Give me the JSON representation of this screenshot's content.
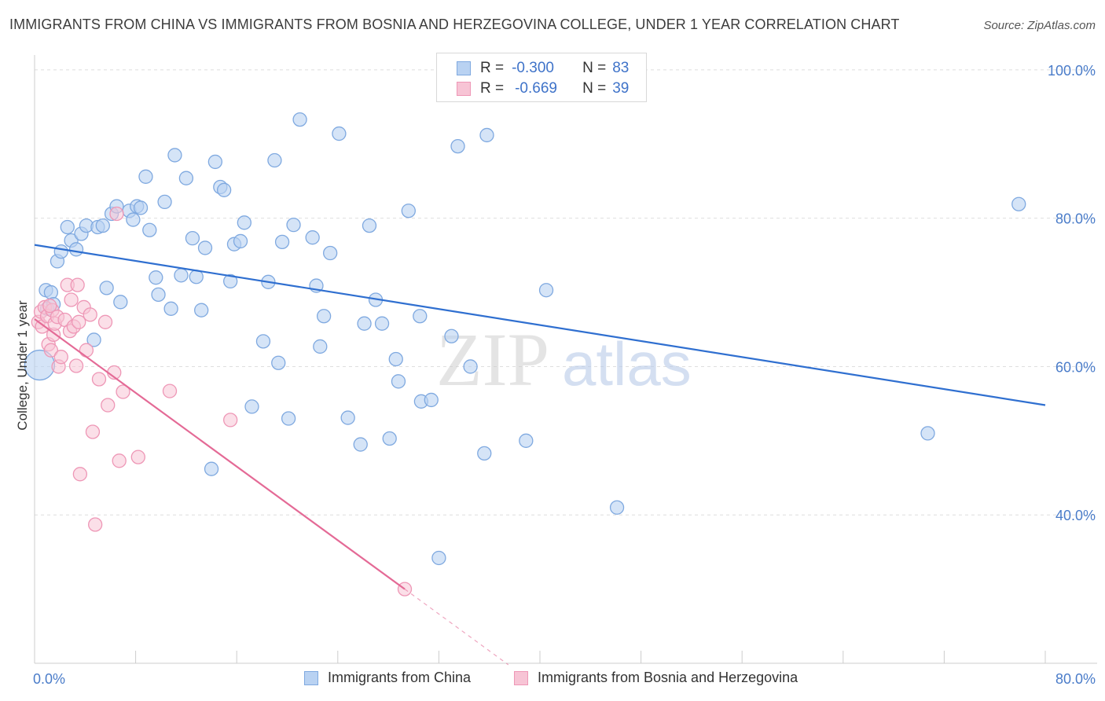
{
  "title": "IMMIGRANTS FROM CHINA VS IMMIGRANTS FROM BOSNIA AND HERZEGOVINA COLLEGE, UNDER 1 YEAR CORRELATION CHART",
  "source": "Source: ZipAtlas.com",
  "watermark": {
    "zip": "ZIP",
    "atlas": "atlas"
  },
  "colors": {
    "china_fill": "#b9d2f2",
    "china_stroke": "#7fa9e0",
    "china_line": "#2f6fd0",
    "bosnia_fill": "#f7c4d5",
    "bosnia_stroke": "#ee97b6",
    "bosnia_line": "#e46a96",
    "axis_label": "#4a7cc9",
    "grid": "#dedede"
  },
  "stats_legend": [
    {
      "r_label": "R =",
      "r_value": "-0.300",
      "n_label": "N =",
      "n_value": "83"
    },
    {
      "r_label": "R =",
      "r_value": "-0.669",
      "n_label": "N =",
      "n_value": "39"
    }
  ],
  "chart_data": {
    "type": "scatter",
    "title": "IMMIGRANTS FROM CHINA VS IMMIGRANTS FROM BOSNIA AND HERZEGOVINA COLLEGE, UNDER 1 YEAR CORRELATION CHART",
    "xlabel": "",
    "ylabel": "College, Under 1 year",
    "xlim": [
      0,
      80
    ],
    "ylim": [
      20,
      102
    ],
    "x_tick_labels": [
      "0.0%",
      "80.0%"
    ],
    "y_ticks": [
      40,
      60,
      80,
      100
    ],
    "y_tick_labels": [
      "40.0%",
      "60.0%",
      "80.0%",
      "100.0%"
    ],
    "legend_position": "bottom-center",
    "series": [
      {
        "name": "Immigrants from China",
        "R": -0.3,
        "N": 83,
        "trend": {
          "x": [
            0,
            80
          ],
          "y": [
            76.4,
            54.8
          ]
        },
        "points": [
          [
            0.4,
            60.2
          ],
          [
            0.9,
            70.3
          ],
          [
            1.0,
            67.8
          ],
          [
            1.3,
            70.0
          ],
          [
            1.5,
            68.4
          ],
          [
            1.8,
            74.2
          ],
          [
            2.1,
            75.5
          ],
          [
            2.6,
            78.8
          ],
          [
            2.9,
            77.0
          ],
          [
            3.3,
            75.8
          ],
          [
            3.7,
            77.9
          ],
          [
            4.1,
            79.0
          ],
          [
            4.7,
            63.6
          ],
          [
            5.0,
            78.8
          ],
          [
            5.4,
            79.0
          ],
          [
            5.7,
            70.6
          ],
          [
            6.1,
            80.6
          ],
          [
            6.5,
            81.6
          ],
          [
            6.8,
            68.7
          ],
          [
            7.5,
            81.0
          ],
          [
            7.8,
            79.8
          ],
          [
            8.1,
            81.6
          ],
          [
            8.4,
            81.4
          ],
          [
            8.8,
            85.6
          ],
          [
            9.1,
            78.4
          ],
          [
            9.6,
            72.0
          ],
          [
            9.8,
            69.7
          ],
          [
            10.3,
            82.2
          ],
          [
            10.8,
            67.8
          ],
          [
            11.1,
            88.5
          ],
          [
            11.6,
            72.3
          ],
          [
            12.0,
            85.4
          ],
          [
            12.5,
            77.3
          ],
          [
            12.8,
            72.1
          ],
          [
            13.2,
            67.6
          ],
          [
            13.5,
            76.0
          ],
          [
            14.0,
            46.2
          ],
          [
            14.3,
            87.6
          ],
          [
            14.7,
            84.2
          ],
          [
            15.0,
            83.8
          ],
          [
            15.5,
            71.5
          ],
          [
            15.8,
            76.5
          ],
          [
            16.3,
            76.9
          ],
          [
            16.6,
            79.4
          ],
          [
            17.2,
            54.6
          ],
          [
            18.1,
            63.4
          ],
          [
            18.5,
            71.4
          ],
          [
            19.0,
            87.8
          ],
          [
            19.3,
            60.5
          ],
          [
            19.6,
            76.8
          ],
          [
            20.1,
            53.0
          ],
          [
            20.5,
            79.1
          ],
          [
            21.0,
            93.3
          ],
          [
            22.0,
            77.4
          ],
          [
            22.3,
            70.9
          ],
          [
            22.6,
            62.7
          ],
          [
            22.9,
            66.8
          ],
          [
            23.4,
            75.3
          ],
          [
            24.1,
            91.4
          ],
          [
            24.8,
            53.1
          ],
          [
            25.8,
            49.5
          ],
          [
            26.1,
            65.8
          ],
          [
            26.5,
            79.0
          ],
          [
            27.0,
            69.0
          ],
          [
            27.5,
            65.8
          ],
          [
            28.1,
            50.3
          ],
          [
            28.6,
            61.0
          ],
          [
            28.8,
            58.0
          ],
          [
            29.6,
            81.0
          ],
          [
            30.5,
            66.8
          ],
          [
            30.6,
            55.3
          ],
          [
            31.4,
            55.5
          ],
          [
            32.0,
            34.2
          ],
          [
            33.0,
            64.1
          ],
          [
            33.5,
            89.7
          ],
          [
            34.5,
            60.0
          ],
          [
            35.6,
            48.3
          ],
          [
            35.8,
            91.2
          ],
          [
            38.9,
            50.0
          ],
          [
            40.5,
            70.3
          ],
          [
            46.1,
            41.0
          ],
          [
            70.7,
            51.0
          ],
          [
            77.9,
            81.9
          ]
        ]
      },
      {
        "name": "Immigrants from Bosnia and Herzegovina",
        "R": -0.669,
        "N": 39,
        "trend": {
          "x": [
            0,
            29.3
          ],
          "y": [
            66.4,
            30.0
          ]
        },
        "trend_dashed": {
          "x": [
            29.3,
            37.5
          ],
          "y": [
            30.0,
            19.8
          ]
        },
        "points": [
          [
            0.3,
            66.0
          ],
          [
            0.5,
            67.4
          ],
          [
            0.6,
            65.4
          ],
          [
            0.8,
            68.0
          ],
          [
            1.0,
            66.8
          ],
          [
            1.1,
            63.0
          ],
          [
            1.3,
            62.2
          ],
          [
            1.4,
            67.6
          ],
          [
            1.5,
            64.3
          ],
          [
            1.6,
            65.8
          ],
          [
            1.8,
            66.7
          ],
          [
            1.9,
            60.0
          ],
          [
            2.1,
            61.3
          ],
          [
            2.4,
            66.3
          ],
          [
            2.6,
            71.0
          ],
          [
            2.8,
            64.8
          ],
          [
            2.9,
            69.0
          ],
          [
            3.1,
            65.4
          ],
          [
            3.3,
            60.1
          ],
          [
            3.4,
            71.0
          ],
          [
            3.5,
            66.0
          ],
          [
            3.6,
            45.5
          ],
          [
            3.9,
            68.0
          ],
          [
            4.1,
            62.2
          ],
          [
            4.4,
            67.0
          ],
          [
            4.6,
            51.2
          ],
          [
            5.1,
            58.3
          ],
          [
            5.6,
            66.0
          ],
          [
            5.8,
            54.8
          ],
          [
            6.3,
            59.2
          ],
          [
            6.5,
            80.6
          ],
          [
            6.7,
            47.3
          ],
          [
            7.0,
            56.6
          ],
          [
            8.2,
            47.8
          ],
          [
            10.7,
            56.7
          ],
          [
            15.5,
            52.8
          ],
          [
            29.3,
            30.0
          ],
          [
            4.8,
            38.7
          ],
          [
            1.2,
            68.2
          ]
        ]
      }
    ]
  }
}
